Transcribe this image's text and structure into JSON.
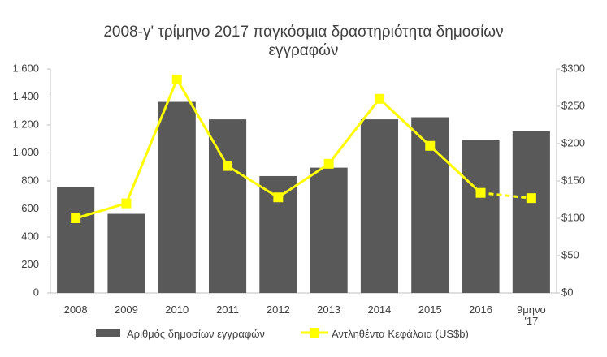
{
  "chart_data": {
    "type": "bar_line",
    "title": "2008-γ' τρίμηνο 2017 παγκόσμια δραστηριότητα δημοσίων εγγραφών",
    "categories": [
      "2008",
      "2009",
      "2010",
      "2011",
      "2012",
      "2013",
      "2014",
      "2015",
      "2016",
      "9μηνο '17"
    ],
    "series": [
      {
        "name": "Αριθμός δημοσίων εγγραφών",
        "type": "bar",
        "color": "#595959",
        "values": [
          755,
          565,
          1365,
          1240,
          835,
          895,
          1240,
          1255,
          1090,
          1155
        ]
      },
      {
        "name": "Αντληθέντα Κεφάλαια (US$b)",
        "type": "line",
        "axis": "y2",
        "color": "#ffff00",
        "values": [
          100,
          120,
          286,
          170,
          128,
          173,
          260,
          197,
          134,
          127
        ],
        "last_segment_style": "dashed"
      }
    ],
    "ylim": [
      0,
      1600
    ],
    "yticks": [
      0,
      200,
      400,
      600,
      800,
      {
        "value": 1000,
        "label": "1.000"
      },
      {
        "value": 1200,
        "label": "1.200"
      },
      {
        "value": 1400,
        "label": "1.400"
      },
      {
        "value": 1600,
        "label": "1.600"
      }
    ],
    "y2lim": [
      0,
      300
    ],
    "y2ticks": [
      {
        "value": 0,
        "label": "$0"
      },
      {
        "value": 50,
        "label": "$50"
      },
      {
        "value": 100,
        "label": "$100"
      },
      {
        "value": 150,
        "label": "$150"
      },
      {
        "value": 200,
        "label": "$200"
      },
      {
        "value": 250,
        "label": "$250"
      },
      {
        "value": 300,
        "label": "$300"
      }
    ],
    "grid": false,
    "legend": "bottom"
  }
}
